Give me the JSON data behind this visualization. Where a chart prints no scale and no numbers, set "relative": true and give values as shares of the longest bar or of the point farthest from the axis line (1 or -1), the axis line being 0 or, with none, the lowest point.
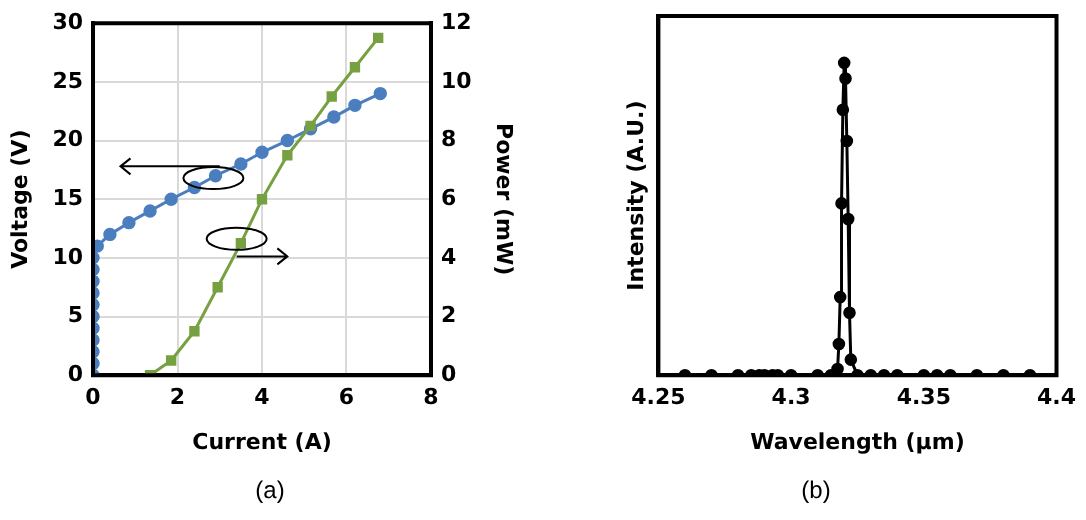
{
  "chart_data": [
    {
      "type": "line",
      "xlabel": "Current (A)",
      "ylabel": "Voltage (V)",
      "y2label": "Power (mW)",
      "xlim": [
        0,
        8
      ],
      "xticks": [
        0,
        2,
        4,
        6,
        8
      ],
      "ylim": [
        0,
        30
      ],
      "yticks": [
        0,
        5,
        10,
        15,
        20,
        25,
        30
      ],
      "y2lim": [
        0,
        12
      ],
      "y2ticks": [
        0,
        2,
        4,
        6,
        8,
        10,
        12
      ],
      "grid": true,
      "legend": false,
      "annotations": [
        "(a)"
      ],
      "series": [
        {
          "color": "#4a7ebf",
          "marker": "circle",
          "x": [
            0,
            0,
            0,
            0,
            0,
            0,
            0,
            0,
            0,
            0,
            0,
            0.1,
            0.4,
            0.85,
            1.35,
            1.85,
            2.4,
            2.9,
            3.5,
            4.0,
            4.6,
            5.15,
            5.7,
            6.2,
            6.8
          ],
          "values": [
            0,
            1,
            2,
            3,
            4,
            5,
            6,
            7,
            8,
            9,
            10,
            11,
            12,
            13,
            14,
            15,
            16,
            17,
            18,
            19,
            20,
            21,
            22,
            23,
            24
          ]
        },
        {
          "color": "#77a040",
          "marker": "square",
          "axis": "y2",
          "x": [
            1.35,
            1.85,
            2.4,
            2.95,
            3.5,
            4.0,
            4.6,
            5.15,
            5.65,
            6.2,
            6.75
          ],
          "values": [
            0,
            0.5,
            1.5,
            3,
            4.5,
            6,
            7.5,
            8.5,
            9.5,
            10.5,
            11.5
          ]
        }
      ]
    },
    {
      "type": "line",
      "xlabel": "Wavelength (µm)",
      "ylabel": "Intensity (A.U.)",
      "xlim": [
        4.25,
        4.4
      ],
      "xticks": [
        4.25,
        4.3,
        4.35,
        4.4
      ],
      "relative": true,
      "tick_labels": "x",
      "grid": false,
      "legend": false,
      "marker": "circle",
      "annotations": [
        "(b)"
      ],
      "series": [
        {
          "color": "#000000",
          "x": [
            4.26,
            4.27,
            4.28,
            4.285,
            4.288,
            4.29,
            4.293,
            4.295,
            4.3,
            4.31,
            4.315,
            4.3175,
            4.318,
            4.3185,
            4.319,
            4.3195,
            4.32,
            4.3205,
            4.321,
            4.3215,
            4.322,
            4.3225,
            4.325,
            4.33,
            4.335,
            4.34,
            4.35,
            4.355,
            4.36,
            4.37,
            4.38,
            4.39
          ],
          "values": [
            0,
            0,
            0,
            0,
            0,
            0,
            0,
            0,
            0,
            0,
            0,
            0.02,
            0.1,
            0.25,
            0.55,
            0.85,
            1,
            0.95,
            0.75,
            0.5,
            0.2,
            0.05,
            0,
            0,
            0,
            0,
            0,
            0,
            0,
            0,
            0,
            0
          ]
        }
      ]
    }
  ]
}
